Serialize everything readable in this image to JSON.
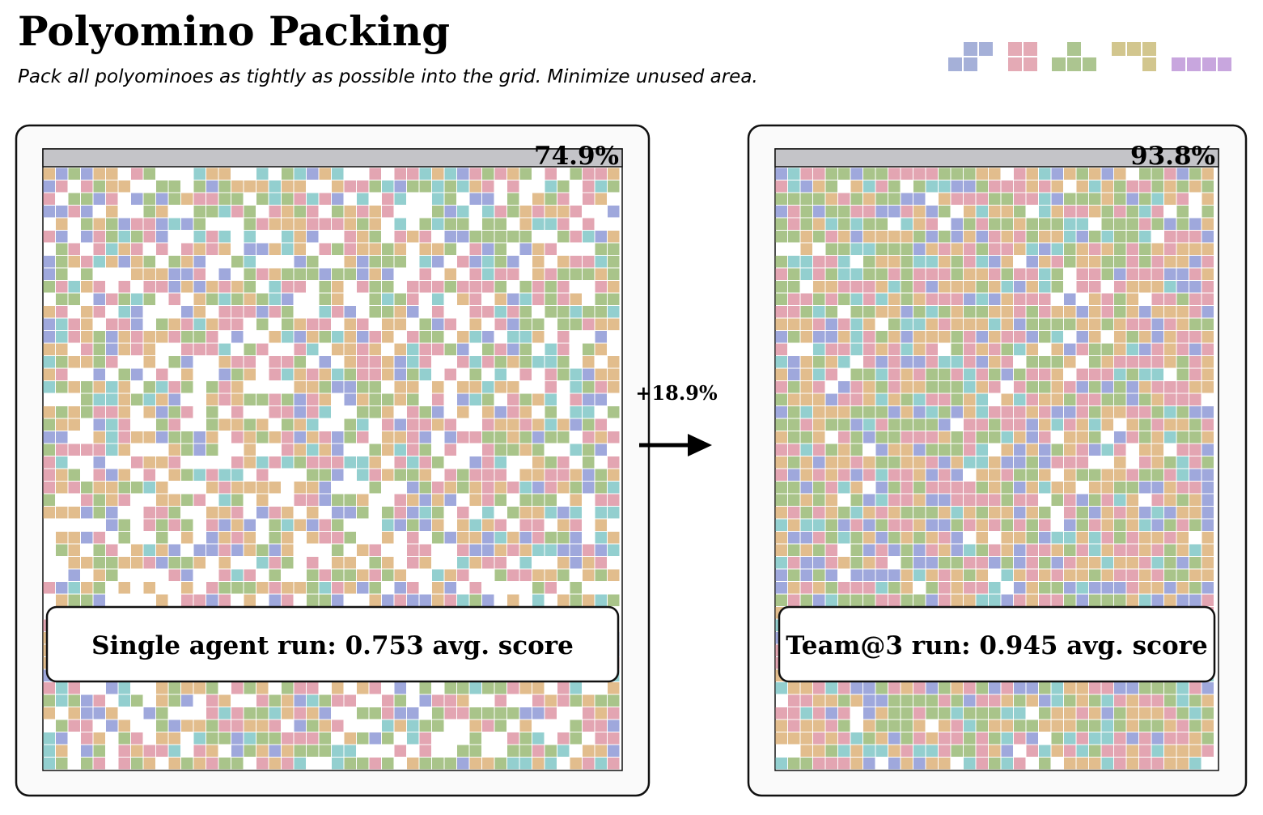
{
  "header": {
    "title": "Polyomino Packing",
    "subtitle": "Pack all polyominoes as tightly as possible into the grid. Minimize unused area."
  },
  "panels": [
    {
      "fill": {
        "value": 74.9,
        "label": "74.9%"
      },
      "caption": "Single agent run: 0.753 avg. score"
    },
    {
      "fill": {
        "value": 93.8,
        "label": "93.8%"
      },
      "caption": "Team@3 run: 0.945 avg. score"
    }
  ],
  "delta": "+18.9%"
}
